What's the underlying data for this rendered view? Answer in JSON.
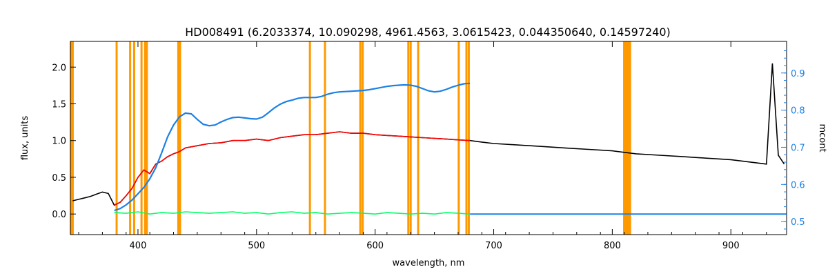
{
  "chart_data": {
    "type": "line",
    "title": "HD008491    (6.2033374, 10.090298, 4961.4563, 3.0615423, 0.044350640, 0.14597240)",
    "xlabel": "wavelength, nm",
    "ylabel": "flux, units",
    "y2label": "mcont",
    "xlim": [
      343,
      947
    ],
    "ylim": [
      -0.28,
      2.35
    ],
    "y2lim": [
      0.465,
      0.985
    ],
    "x_ticks": [
      400,
      500,
      600,
      700,
      800,
      900
    ],
    "y_ticks": [
      0.0,
      0.5,
      1.0,
      1.5,
      2.0
    ],
    "y_tick_labels": [
      "0.0",
      "0.5",
      "1.0",
      "1.5",
      "2.0"
    ],
    "y2_ticks": [
      0.5,
      0.6,
      0.7,
      0.8,
      0.9
    ],
    "y2_tick_labels": [
      "0.5",
      "0.6",
      "0.7",
      "0.8",
      "0.9"
    ],
    "grid": false,
    "colors": {
      "observed": "#000000",
      "model": "#ff0000",
      "residual": "#00ff66",
      "continuum": "#1a80e6",
      "masks": "#ff9900",
      "right_axis": "#1a80e6"
    },
    "mask_lines_nm": [
      343.5,
      345,
      382,
      393.4,
      396.8,
      403,
      406,
      407.5,
      434,
      435.5,
      545,
      557.7,
      587.5,
      589.5,
      628,
      630,
      636.3,
      670.5,
      677,
      679,
      810,
      811,
      812,
      813,
      814,
      815
    ],
    "series": [
      {
        "key": "continuum",
        "axis": "right",
        "x": [
          380,
          385,
          390,
          395,
          400,
          405,
          410,
          415,
          420,
          425,
          430,
          435,
          440,
          445,
          450,
          455,
          460,
          465,
          470,
          475,
          480,
          485,
          490,
          495,
          500,
          505,
          510,
          515,
          520,
          525,
          530,
          535,
          540,
          545,
          550,
          555,
          560,
          565,
          570,
          575,
          580,
          585,
          590,
          595,
          600,
          605,
          610,
          615,
          620,
          625,
          630,
          635,
          640,
          645,
          650,
          655,
          660,
          665,
          670,
          675,
          680
        ],
        "y": [
          0.53,
          0.535,
          0.545,
          0.558,
          0.575,
          0.592,
          0.615,
          0.645,
          0.685,
          0.728,
          0.76,
          0.782,
          0.792,
          0.79,
          0.775,
          0.762,
          0.758,
          0.76,
          0.768,
          0.775,
          0.78,
          0.781,
          0.779,
          0.777,
          0.776,
          0.781,
          0.793,
          0.806,
          0.816,
          0.823,
          0.827,
          0.832,
          0.834,
          0.834,
          0.834,
          0.837,
          0.843,
          0.847,
          0.849,
          0.85,
          0.851,
          0.852,
          0.853,
          0.855,
          0.858,
          0.861,
          0.864,
          0.866,
          0.867,
          0.868,
          0.867,
          0.864,
          0.858,
          0.852,
          0.849,
          0.851,
          0.856,
          0.862,
          0.867,
          0.871,
          0.872
        ]
      },
      {
        "key": "observed",
        "axis": "left",
        "x": [
          345,
          350,
          355,
          360,
          365,
          370,
          375,
          380,
          385,
          390,
          395,
          400,
          405,
          410,
          415,
          420,
          425,
          430,
          435,
          440,
          450,
          460,
          470,
          480,
          490,
          500,
          510,
          520,
          530,
          540,
          550,
          560,
          570,
          580,
          590,
          600,
          610,
          620,
          630,
          640,
          650,
          660,
          670,
          680,
          690,
          700,
          720,
          740,
          760,
          780,
          800,
          820,
          840,
          860,
          880,
          900,
          920,
          930,
          935,
          940,
          945
        ],
        "y": [
          0.18,
          0.2,
          0.22,
          0.24,
          0.27,
          0.3,
          0.28,
          0.12,
          0.16,
          0.25,
          0.35,
          0.5,
          0.6,
          0.55,
          0.68,
          0.72,
          0.78,
          0.82,
          0.85,
          0.9,
          0.93,
          0.96,
          0.97,
          1.0,
          1.0,
          1.02,
          1.0,
          1.04,
          1.06,
          1.08,
          1.08,
          1.1,
          1.12,
          1.1,
          1.1,
          1.08,
          1.07,
          1.06,
          1.05,
          1.04,
          1.03,
          1.02,
          1.01,
          1.0,
          0.98,
          0.96,
          0.94,
          0.92,
          0.9,
          0.88,
          0.86,
          0.82,
          0.8,
          0.78,
          0.76,
          0.74,
          0.7,
          0.68,
          2.05,
          0.8,
          0.68
        ]
      },
      {
        "key": "model",
        "axis": "left",
        "x": [
          380,
          385,
          390,
          395,
          400,
          405,
          410,
          415,
          420,
          425,
          430,
          435,
          440,
          450,
          460,
          470,
          480,
          490,
          500,
          510,
          520,
          530,
          540,
          550,
          560,
          570,
          580,
          590,
          600,
          610,
          620,
          630,
          640,
          650,
          660,
          670,
          680
        ],
        "y": [
          0.12,
          0.16,
          0.25,
          0.35,
          0.5,
          0.6,
          0.55,
          0.68,
          0.72,
          0.78,
          0.82,
          0.85,
          0.9,
          0.93,
          0.96,
          0.97,
          1.0,
          1.0,
          1.02,
          1.0,
          1.04,
          1.06,
          1.08,
          1.08,
          1.1,
          1.12,
          1.1,
          1.1,
          1.08,
          1.07,
          1.06,
          1.05,
          1.04,
          1.03,
          1.02,
          1.01,
          1.0
        ]
      },
      {
        "key": "residual",
        "axis": "left",
        "x": [
          380,
          390,
          400,
          410,
          420,
          430,
          440,
          450,
          460,
          470,
          480,
          490,
          500,
          510,
          520,
          530,
          540,
          550,
          560,
          570,
          580,
          590,
          600,
          610,
          620,
          630,
          640,
          650,
          660,
          670,
          680
        ],
        "y": [
          0.02,
          0.01,
          0.03,
          0.0,
          0.02,
          0.01,
          0.03,
          0.02,
          0.01,
          0.02,
          0.03,
          0.01,
          0.02,
          0.0,
          0.02,
          0.03,
          0.01,
          0.02,
          0.0,
          0.01,
          0.02,
          0.01,
          0.0,
          0.02,
          0.01,
          0.0,
          0.01,
          0.0,
          0.02,
          0.01,
          0.0
        ]
      }
    ]
  }
}
